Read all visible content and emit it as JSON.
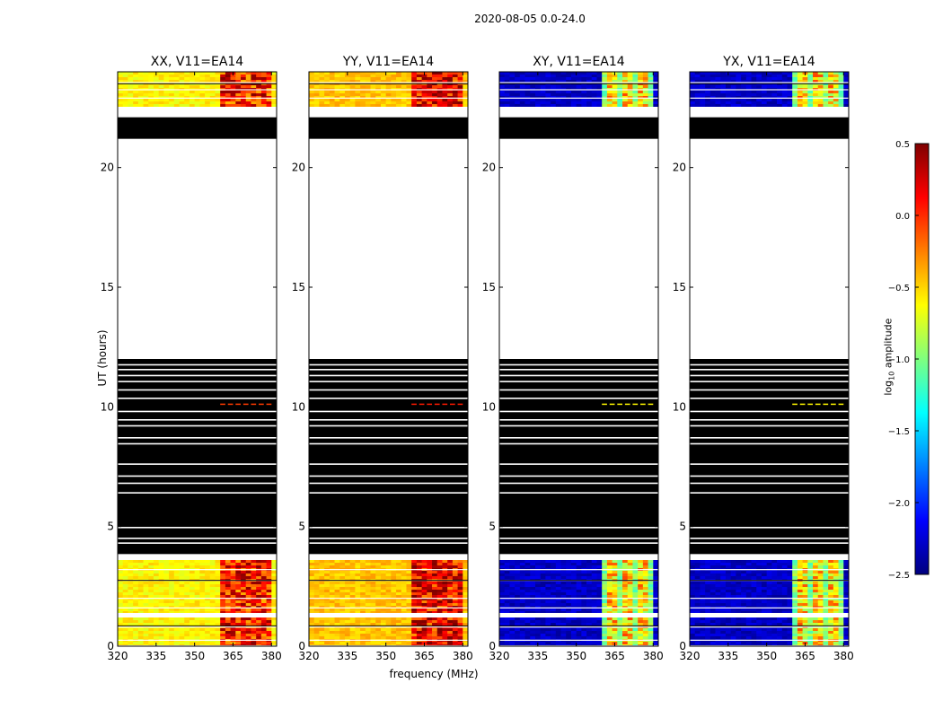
{
  "figure": {
    "suptitle": "2020-08-05 0.0-24.0",
    "ylabel": "UT (hours)",
    "xlabel": "frequency (MHz)"
  },
  "colorbar": {
    "label_prefix": "log",
    "label_sub": "10",
    "label_suffix": " amplitude",
    "ticks": [
      "0.5",
      "0.0",
      "−0.5",
      "−1.0",
      "−1.5",
      "−2.0",
      "−2.5"
    ],
    "tick_values": [
      0.5,
      0.0,
      -0.5,
      -1.0,
      -1.5,
      -2.0,
      -2.5
    ],
    "range": [
      -2.5,
      0.5
    ],
    "colormap": "jet",
    "colors": [
      "#00007f",
      "#0000ff",
      "#007fff",
      "#00ffff",
      "#7fff7f",
      "#ffff00",
      "#ff7f00",
      "#ff0000",
      "#7f0000"
    ]
  },
  "chart_data": [
    {
      "type": "heatmap",
      "title": "XX, V11=EA14",
      "xlim": [
        320,
        382
      ],
      "ylim": [
        0,
        24
      ],
      "xticks": [
        "320",
        "335",
        "350",
        "365",
        "380"
      ],
      "xtick_values": [
        320,
        335,
        350,
        365,
        380
      ],
      "yticks": [
        "0",
        "5",
        "10",
        "15",
        "20"
      ],
      "ytick_values": [
        0,
        5,
        10,
        15,
        20
      ],
      "base_level": -0.6,
      "band_level": -0.05,
      "band_range_mhz": [
        360,
        380
      ]
    },
    {
      "type": "heatmap",
      "title": "YY, V11=EA14",
      "xlim": [
        320,
        382
      ],
      "ylim": [
        0,
        24
      ],
      "xticks": [
        "320",
        "335",
        "350",
        "365",
        "380"
      ],
      "xtick_values": [
        320,
        335,
        350,
        365,
        380
      ],
      "yticks": [
        "0",
        "5",
        "10",
        "15",
        "20"
      ],
      "ytick_values": [
        0,
        5,
        10,
        15,
        20
      ],
      "base_level": -0.45,
      "band_level": 0.05,
      "band_range_mhz": [
        360,
        380
      ]
    },
    {
      "type": "heatmap",
      "title": "XY, V11=EA14",
      "xlim": [
        320,
        382
      ],
      "ylim": [
        0,
        24
      ],
      "xticks": [
        "320",
        "335",
        "350",
        "365",
        "380"
      ],
      "xtick_values": [
        320,
        335,
        350,
        365,
        380
      ],
      "yticks": [
        "0",
        "5",
        "10",
        "15",
        "20"
      ],
      "ytick_values": [
        0,
        5,
        10,
        15,
        20
      ],
      "base_level": -2.3,
      "band_level": -0.6,
      "band_range_mhz": [
        360,
        380
      ]
    },
    {
      "type": "heatmap",
      "title": "YX, V11=EA14",
      "xlim": [
        320,
        382
      ],
      "ylim": [
        0,
        24
      ],
      "xticks": [
        "320",
        "335",
        "350",
        "365",
        "380"
      ],
      "xtick_values": [
        320,
        335,
        350,
        365,
        380
      ],
      "yticks": [
        "0",
        "5",
        "10",
        "15",
        "20"
      ],
      "ytick_values": [
        0,
        5,
        10,
        15,
        20
      ],
      "base_level": -2.3,
      "band_level": -0.6,
      "band_range_mhz": [
        360,
        380
      ]
    }
  ],
  "time_segments": {
    "data_hours": [
      [
        0.05,
        1.2
      ],
      [
        1.4,
        3.6
      ],
      [
        22.55,
        24.0
      ]
    ],
    "blank_hours": [
      [
        0.0,
        0.05
      ],
      [
        1.2,
        1.4
      ],
      [
        3.6,
        3.85
      ],
      [
        12.0,
        21.2
      ],
      [
        22.1,
        22.55
      ]
    ],
    "flag_hours": [
      [
        3.85,
        12.0
      ],
      [
        21.2,
        22.1
      ]
    ],
    "flag_gap_hours": [
      4.3,
      4.5,
      4.95,
      6.4,
      6.8,
      7.1,
      7.6,
      8.45,
      8.7,
      9.2,
      9.45,
      9.8,
      10.35,
      10.7,
      11.05,
      11.3,
      11.55,
      11.75
    ],
    "data_gap_hours": [
      0.25,
      0.8,
      1.6,
      2.0,
      2.75,
      3.2,
      22.9,
      23.25,
      23.55
    ],
    "signal_hour": 10.1
  }
}
